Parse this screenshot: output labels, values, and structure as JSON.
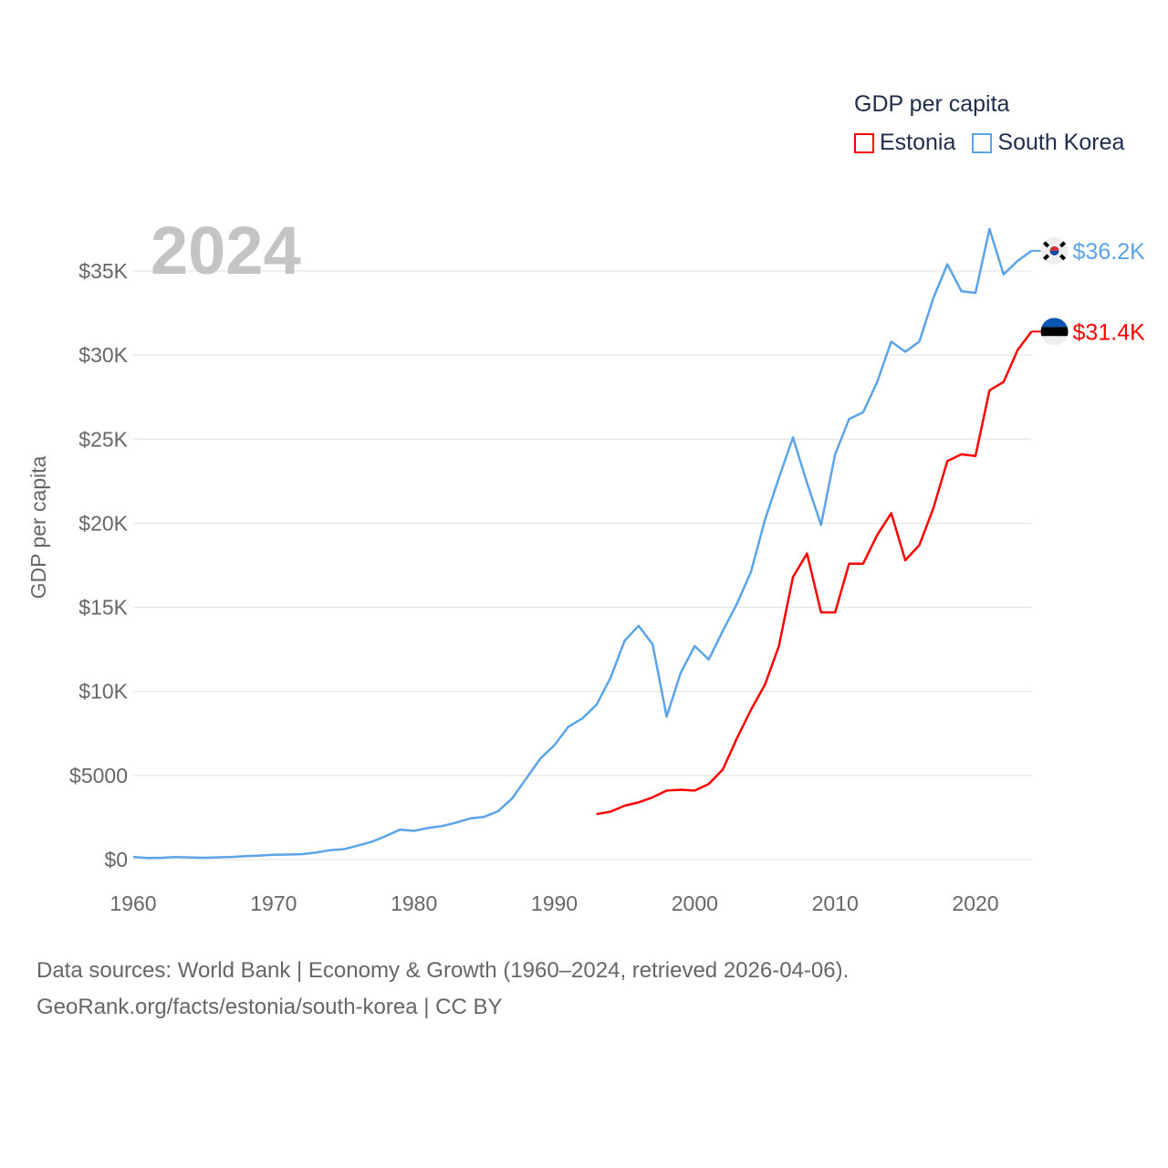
{
  "chart_data": {
    "type": "line",
    "title": "GDP per capita",
    "year_label": "2024",
    "ylabel": "GDP per capita",
    "xlabel": "",
    "xlim": [
      1960,
      2024
    ],
    "ylim": [
      0,
      38000
    ],
    "grid": true,
    "legend_position": "top-right",
    "x_ticks": [
      1960,
      1970,
      1980,
      1990,
      2000,
      2010,
      2020
    ],
    "x_tick_labels": [
      "1960",
      "1970",
      "1980",
      "1990",
      "2000",
      "2010",
      "2020"
    ],
    "y_ticks": [
      0,
      5000,
      10000,
      15000,
      20000,
      25000,
      30000,
      35000
    ],
    "y_tick_labels": [
      "$0",
      "$5000",
      "$10K",
      "$15K",
      "$20K",
      "$25K",
      "$30K",
      "$35K"
    ],
    "series": [
      {
        "name": "Estonia",
        "color": "#ff0000",
        "end_label": "$31.4K",
        "flag": "estonia-flag",
        "x_start": 1993,
        "values": [
          2700,
          2850,
          3200,
          3400,
          3700,
          4100,
          4150,
          4100,
          4500,
          5350,
          7200,
          8900,
          10400,
          12700,
          16800,
          18200,
          14700,
          14700,
          17600,
          17600,
          19300,
          20600,
          17800,
          18700,
          20900,
          23700,
          24100,
          24000,
          27900,
          28400,
          30300,
          31400
        ]
      },
      {
        "name": "South Korea",
        "color": "#5ba4e8",
        "end_label": "$36.2K",
        "flag": "south-korea-flag",
        "x_start": 1960,
        "values": [
          160,
          100,
          110,
          150,
          130,
          110,
          130,
          160,
          200,
          240,
          280,
          300,
          320,
          410,
          560,
          620,
          830,
          1060,
          1400,
          1780,
          1710,
          1880,
          1990,
          2200,
          2450,
          2540,
          2880,
          3640,
          4820,
          6000,
          6800,
          7900,
          8400,
          9200,
          10800,
          13000,
          13900,
          12800,
          8500,
          11100,
          12700,
          11900,
          13600,
          15200,
          17100,
          20200,
          22700,
          25100,
          22400,
          19900,
          24100,
          26200,
          26600,
          28400,
          30800,
          30200,
          30800,
          33400,
          35400,
          33800,
          33700,
          37500,
          34800,
          35600,
          36200
        ]
      }
    ]
  },
  "footer": {
    "line1": "Data sources: World Bank | Economy & Growth (1960–2024, retrieved 2026-04-06).",
    "line2": "GeoRank.org/facts/estonia/south-korea | CC BY"
  }
}
